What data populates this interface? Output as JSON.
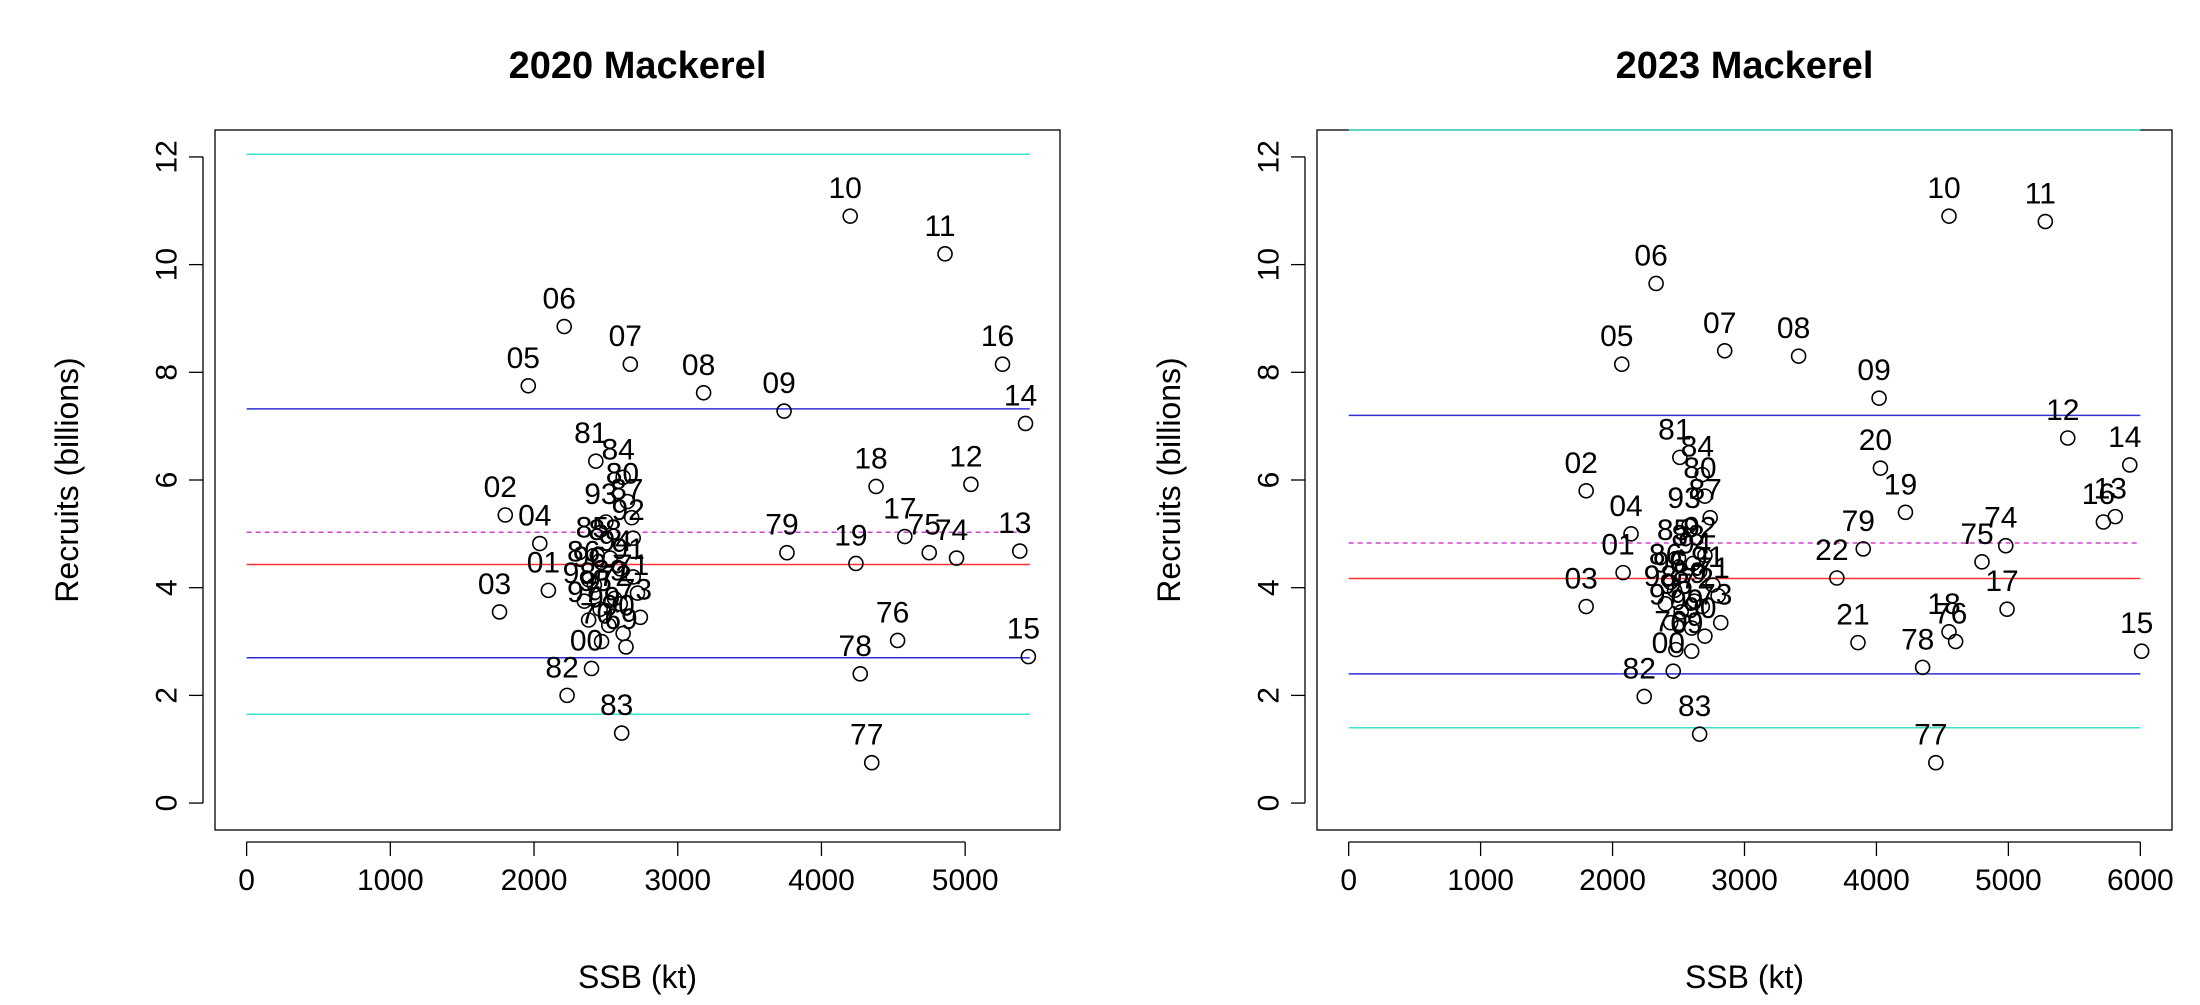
{
  "chart_data": [
    {
      "type": "scatter",
      "title": "2020 Mackerel",
      "xlabel": "SSB (kt)",
      "ylabel": "Recruits (billions)",
      "xlim": [
        -220,
        5660
      ],
      "ylim": [
        -0.5,
        12.5
      ],
      "xticks": [
        0,
        1000,
        2000,
        3000,
        4000,
        5000
      ],
      "yticks": [
        0,
        2,
        4,
        6,
        8,
        10,
        12
      ],
      "line_xrange": [
        0,
        5450
      ],
      "hlines": [
        {
          "value": 12.05,
          "color": "#40e0d0",
          "style": "solid"
        },
        {
          "value": 7.32,
          "color": "#3030d0",
          "style": "solid"
        },
        {
          "value": 5.03,
          "color": "#d040d0",
          "style": "dashed"
        },
        {
          "value": 4.43,
          "color": "#ff3030",
          "style": "solid"
        },
        {
          "value": 2.7,
          "color": "#3030d0",
          "style": "solid"
        },
        {
          "value": 1.65,
          "color": "#40e0d0",
          "style": "solid"
        }
      ],
      "points": [
        {
          "label": "10",
          "x": 4200,
          "y": 10.9
        },
        {
          "label": "11",
          "x": 4860,
          "y": 10.2
        },
        {
          "label": "06",
          "x": 2210,
          "y": 8.85
        },
        {
          "label": "07",
          "x": 2670,
          "y": 8.15
        },
        {
          "label": "16",
          "x": 5260,
          "y": 8.15
        },
        {
          "label": "05",
          "x": 1960,
          "y": 7.75
        },
        {
          "label": "08",
          "x": 3180,
          "y": 7.62
        },
        {
          "label": "09",
          "x": 3740,
          "y": 7.28
        },
        {
          "label": "14",
          "x": 5420,
          "y": 7.05
        },
        {
          "label": "81",
          "x": 2430,
          "y": 6.35
        },
        {
          "label": "84",
          "x": 2620,
          "y": 6.05
        },
        {
          "label": "12",
          "x": 5040,
          "y": 5.92
        },
        {
          "label": "18",
          "x": 4380,
          "y": 5.88
        },
        {
          "label": "80",
          "x": 2650,
          "y": 5.6
        },
        {
          "label": "02",
          "x": 1800,
          "y": 5.35
        },
        {
          "label": "87",
          "x": 2680,
          "y": 5.3
        },
        {
          "label": "93",
          "x": 2500,
          "y": 5.22
        },
        {
          "label": "04",
          "x": 2040,
          "y": 4.82
        },
        {
          "label": "17",
          "x": 4580,
          "y": 4.95
        },
        {
          "label": "92",
          "x": 2690,
          "y": 4.92
        },
        {
          "label": "79",
          "x": 3760,
          "y": 4.65
        },
        {
          "label": "13",
          "x": 5380,
          "y": 4.68
        },
        {
          "label": "75",
          "x": 4750,
          "y": 4.65
        },
        {
          "label": "74",
          "x": 4940,
          "y": 4.55
        },
        {
          "label": "19",
          "x": 4240,
          "y": 4.45
        },
        {
          "label": "01",
          "x": 2100,
          "y": 3.95
        },
        {
          "label": "03",
          "x": 1760,
          "y": 3.55
        },
        {
          "label": "85",
          "x": 2440,
          "y": 4.6
        },
        {
          "label": "88",
          "x": 2530,
          "y": 4.55
        },
        {
          "label": "94",
          "x": 2600,
          "y": 4.35
        },
        {
          "label": "86",
          "x": 2380,
          "y": 4.15
        },
        {
          "label": "91",
          "x": 2690,
          "y": 4.2
        },
        {
          "label": "96",
          "x": 2420,
          "y": 4.05
        },
        {
          "label": "71",
          "x": 2720,
          "y": 3.9
        },
        {
          "label": "98",
          "x": 2350,
          "y": 3.75
        },
        {
          "label": "89",
          "x": 2560,
          "y": 3.8
        },
        {
          "label": "72",
          "x": 2600,
          "y": 3.7
        },
        {
          "label": "95",
          "x": 2460,
          "y": 3.6
        },
        {
          "label": "73",
          "x": 2740,
          "y": 3.45
        },
        {
          "label": "97",
          "x": 2380,
          "y": 3.4
        },
        {
          "label": "99",
          "x": 2520,
          "y": 3.3
        },
        {
          "label": "90",
          "x": 2620,
          "y": 3.15
        },
        {
          "label": "70",
          "x": 2470,
          "y": 3.0
        },
        {
          "label": "69",
          "x": 2640,
          "y": 2.9
        },
        {
          "label": "76",
          "x": 4530,
          "y": 3.02
        },
        {
          "label": "15",
          "x": 5440,
          "y": 2.72
        },
        {
          "label": "78",
          "x": 4270,
          "y": 2.4
        },
        {
          "label": "00",
          "x": 2400,
          "y": 2.5
        },
        {
          "label": "82",
          "x": 2230,
          "y": 2.0
        },
        {
          "label": "83",
          "x": 2610,
          "y": 1.3
        },
        {
          "label": "77",
          "x": 4350,
          "y": 0.75
        }
      ]
    },
    {
      "type": "scatter",
      "title": "2023 Mackerel",
      "xlabel": "SSB (kt)",
      "ylabel": "Recruits (billions)",
      "xlim": [
        -240,
        6240
      ],
      "ylim": [
        -0.5,
        12.5
      ],
      "xticks": [
        0,
        1000,
        2000,
        3000,
        4000,
        5000,
        6000
      ],
      "yticks": [
        0,
        2,
        4,
        6,
        8,
        10,
        12
      ],
      "line_xrange": [
        0,
        6000
      ],
      "hlines": [
        {
          "value": 12.5,
          "color": "#40e0d0",
          "style": "solid"
        },
        {
          "value": 7.2,
          "color": "#3030d0",
          "style": "solid"
        },
        {
          "value": 4.83,
          "color": "#d040d0",
          "style": "dashed"
        },
        {
          "value": 4.17,
          "color": "#ff3030",
          "style": "solid"
        },
        {
          "value": 2.4,
          "color": "#3030d0",
          "style": "solid"
        },
        {
          "value": 1.4,
          "color": "#40e0d0",
          "style": "solid"
        }
      ],
      "points": [
        {
          "label": "10",
          "x": 4550,
          "y": 10.9
        },
        {
          "label": "11",
          "x": 5280,
          "y": 10.8
        },
        {
          "label": "06",
          "x": 2330,
          "y": 9.65
        },
        {
          "label": "07",
          "x": 2850,
          "y": 8.4
        },
        {
          "label": "08",
          "x": 3410,
          "y": 8.3
        },
        {
          "label": "05",
          "x": 2070,
          "y": 8.15
        },
        {
          "label": "09",
          "x": 4020,
          "y": 7.52
        },
        {
          "label": "12",
          "x": 5450,
          "y": 6.78
        },
        {
          "label": "81",
          "x": 2510,
          "y": 6.42
        },
        {
          "label": "14",
          "x": 5920,
          "y": 6.28
        },
        {
          "label": "20",
          "x": 4030,
          "y": 6.22
        },
        {
          "label": "84",
          "x": 2680,
          "y": 6.1
        },
        {
          "label": "02",
          "x": 1800,
          "y": 5.8
        },
        {
          "label": "80",
          "x": 2700,
          "y": 5.7
        },
        {
          "label": "19",
          "x": 4220,
          "y": 5.4
        },
        {
          "label": "13",
          "x": 5810,
          "y": 5.32
        },
        {
          "label": "16",
          "x": 5720,
          "y": 5.22
        },
        {
          "label": "87",
          "x": 2740,
          "y": 5.3
        },
        {
          "label": "93",
          "x": 2580,
          "y": 5.15
        },
        {
          "label": "04",
          "x": 2140,
          "y": 5.0
        },
        {
          "label": "74",
          "x": 4980,
          "y": 4.78
        },
        {
          "label": "79",
          "x": 3900,
          "y": 4.72
        },
        {
          "label": "75",
          "x": 4800,
          "y": 4.48
        },
        {
          "label": "01",
          "x": 2080,
          "y": 4.28
        },
        {
          "label": "22",
          "x": 3700,
          "y": 4.18
        },
        {
          "label": "92",
          "x": 2700,
          "y": 4.6
        },
        {
          "label": "85",
          "x": 2500,
          "y": 4.55
        },
        {
          "label": "88",
          "x": 2610,
          "y": 4.45
        },
        {
          "label": "94",
          "x": 2660,
          "y": 4.3
        },
        {
          "label": "86",
          "x": 2440,
          "y": 4.1
        },
        {
          "label": "91",
          "x": 2760,
          "y": 4.05
        },
        {
          "label": "96",
          "x": 2470,
          "y": 3.95
        },
        {
          "label": "71",
          "x": 2800,
          "y": 3.85
        },
        {
          "label": "98",
          "x": 2400,
          "y": 3.7
        },
        {
          "label": "89",
          "x": 2620,
          "y": 3.75
        },
        {
          "label": "72",
          "x": 2680,
          "y": 3.65
        },
        {
          "label": "95",
          "x": 2520,
          "y": 3.55
        },
        {
          "label": "73",
          "x": 2820,
          "y": 3.35
        },
        {
          "label": "97",
          "x": 2440,
          "y": 3.35
        },
        {
          "label": "99",
          "x": 2600,
          "y": 3.25
        },
        {
          "label": "90",
          "x": 2700,
          "y": 3.1
        },
        {
          "label": "03",
          "x": 1800,
          "y": 3.65
        },
        {
          "label": "17",
          "x": 4990,
          "y": 3.6
        },
        {
          "label": "18",
          "x": 4550,
          "y": 3.18
        },
        {
          "label": "76",
          "x": 4600,
          "y": 3.0
        },
        {
          "label": "21",
          "x": 3860,
          "y": 2.98
        },
        {
          "label": "70",
          "x": 2480,
          "y": 2.85
        },
        {
          "label": "69",
          "x": 2600,
          "y": 2.82
        },
        {
          "label": "15",
          "x": 6010,
          "y": 2.82
        },
        {
          "label": "78",
          "x": 4350,
          "y": 2.52
        },
        {
          "label": "00",
          "x": 2460,
          "y": 2.45
        },
        {
          "label": "82",
          "x": 2240,
          "y": 1.98
        },
        {
          "label": "83",
          "x": 2660,
          "y": 1.28
        },
        {
          "label": "77",
          "x": 4450,
          "y": 0.75
        }
      ]
    }
  ]
}
